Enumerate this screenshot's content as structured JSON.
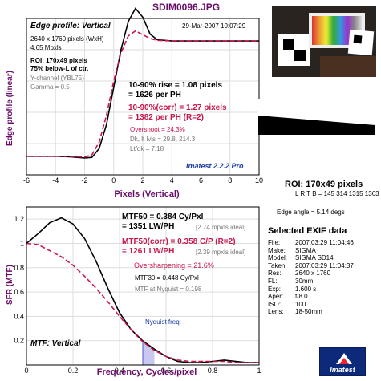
{
  "title": "SDIM0096.JPG",
  "top_panel": {
    "header": "Edge profile: Vertical",
    "date": "29-Mar-2007 10:07:29",
    "info": [
      "2640 x 1760 pixels (WxH)",
      "4.65 Mpxls"
    ],
    "roi_lines": [
      "ROI: 170x49 pixels",
      "75% below-L of ctr."
    ],
    "channel_lines": [
      "Y-channel  (YBL75)",
      "Gamma = 0.5"
    ],
    "rise1": "10-90% rise = 1.08 pixels",
    "rise2": "= 1626 per PH",
    "corr1": "10-90%(corr) = 1.27 pixels",
    "corr2": "= 1382 per PH  (R=2)",
    "overshoot": "Overshoot = 24.3%",
    "dk_lt": "Dk, lt lvls = 29.8, 214.3",
    "ltdk": "Lt/dk = 7.18",
    "brand": "Imatest 2.2.2 Pro"
  },
  "bottom_panel": {
    "mtf50_1": "MTF50 = 0.384 Cy/Pxl",
    "mtf50_2": "= 1351 LW/PH",
    "mtf50_ideal": "[2.74 mpxls ideal]",
    "mtf50c_1": "MTF50(corr) = 0.358 C/P  (R=2)",
    "mtf50c_2": "= 1261 LW/PH",
    "mtf50c_ideal": "[2.39 mpxls ideal]",
    "oversharp": "Oversharpening = 21.6%",
    "mtf30": "MTF30 = 0.448 Cy/Pxl",
    "nyq": "MTF at Nyquist = 0.198",
    "nyq_label": "Nyquist freq.",
    "label": "MTF: Vertical"
  },
  "right_panel": {
    "roi": "ROI: 170x49 pixels",
    "lrtb": "L R T B = 145 314   1315 1363",
    "edge_angle": "Edge angle = 5.14 degs",
    "exif_title": "Selected EXIF data",
    "exif": [
      {
        "k": "File:",
        "v": "2007:03:29 11:04:46"
      },
      {
        "k": "Make:",
        "v": "SIGMA"
      },
      {
        "k": "Model:",
        "v": "SIGMA SD14"
      },
      {
        "k": "Taken:",
        "v": "2007:03:29 11:04:37"
      },
      {
        "k": "Res:",
        "v": "2640 x 1760"
      },
      {
        "k": "FL:",
        "v": "30mm"
      },
      {
        "k": "Exp:",
        "v": "1.600 s"
      },
      {
        "k": "Aper:",
        "v": "f/8.0"
      },
      {
        "k": "ISO:",
        "v": "100"
      },
      {
        "k": "Lens:",
        "v": "18-50mm"
      }
    ],
    "logo": "Imatest"
  },
  "colors": {
    "curve": "#000000",
    "corr": "#c8154a",
    "title": "#6a0d6a",
    "nyquist_fill": "#c8c8f0",
    "brand": "#1a3da8"
  },
  "chart_data": [
    {
      "type": "line",
      "title": "Edge profile: Vertical",
      "xlabel": "Pixels (Vertical)",
      "ylabel": "Edge profile (linear)",
      "xlim": [
        -6,
        10
      ],
      "x_ticks": [
        -6,
        -4,
        -2,
        0,
        2,
        4,
        6,
        8,
        10
      ],
      "grid": true,
      "series": [
        {
          "x": [
            -6,
            -4,
            -3,
            -2,
            -1.5,
            -1,
            -0.5,
            0,
            0.5,
            1,
            1.5,
            2,
            2.5,
            3,
            4,
            5,
            6,
            8,
            10
          ],
          "y": [
            29.8,
            29.8,
            29,
            27,
            28,
            42,
            80,
            140,
            200,
            245,
            266,
            252,
            225,
            216,
            214,
            214,
            214,
            214,
            214
          ]
        },
        {
          "x": [
            -6,
            -4,
            -3,
            -2,
            -1.5,
            -1,
            -0.5,
            0,
            0.5,
            1,
            1.5,
            2,
            2.5,
            3,
            4,
            5,
            6,
            8,
            10
          ],
          "y": [
            29.8,
            29.8,
            29.5,
            28.5,
            32,
            52,
            95,
            150,
            195,
            222,
            230,
            224,
            218,
            215,
            214,
            214,
            214,
            214,
            214
          ]
        }
      ]
    },
    {
      "type": "line",
      "title": "MTF: Vertical",
      "xlabel": "Frequency, Cycles/pixel",
      "ylabel": "SFR (MTF)",
      "xlim": [
        0,
        1
      ],
      "ylim": [
        0,
        1.3
      ],
      "x_ticks": [
        0,
        0.2,
        0.4,
        0.6,
        0.8,
        1
      ],
      "y_ticks": [
        0.2,
        0.4,
        0.6,
        0.8,
        1,
        1.2
      ],
      "grid": true,
      "nyquist": 0.5,
      "series": [
        {
          "x": [
            0,
            0.05,
            0.1,
            0.15,
            0.2,
            0.25,
            0.3,
            0.35,
            0.4,
            0.45,
            0.5,
            0.55,
            0.6,
            0.65,
            0.7,
            0.75,
            0.8,
            0.85,
            0.9,
            0.95,
            1.0
          ],
          "y": [
            1.0,
            1.08,
            1.17,
            1.21,
            1.16,
            1.04,
            0.85,
            0.63,
            0.43,
            0.29,
            0.198,
            0.13,
            0.07,
            0.03,
            0.02,
            0.02,
            0.03,
            0.04,
            0.03,
            0.02,
            0.02
          ]
        },
        {
          "x": [
            0,
            0.05,
            0.1,
            0.15,
            0.2,
            0.25,
            0.3,
            0.35,
            0.4,
            0.45,
            0.5,
            0.55,
            0.6,
            0.65,
            0.7,
            0.75,
            0.8,
            0.85,
            0.9,
            0.95,
            1.0
          ],
          "y": [
            1.0,
            0.99,
            0.94,
            0.89,
            0.82,
            0.73,
            0.63,
            0.52,
            0.4,
            0.29,
            0.19,
            0.12,
            0.07,
            0.04,
            0.03,
            0.03,
            0.03,
            0.03,
            0.02,
            0.02,
            0.02
          ]
        }
      ]
    }
  ]
}
